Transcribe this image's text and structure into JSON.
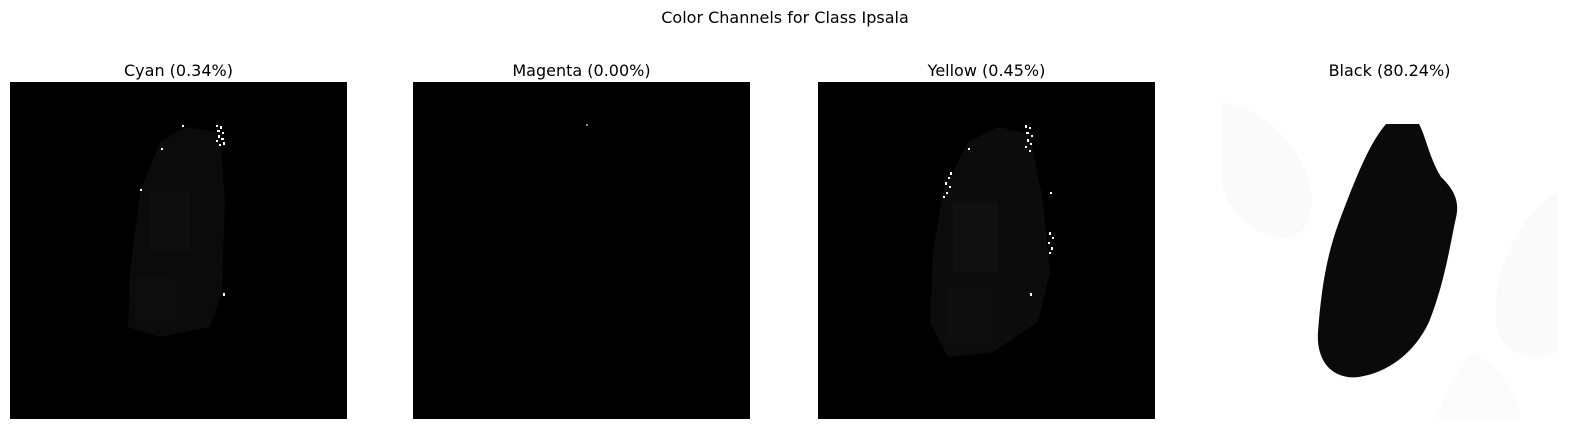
{
  "figure": {
    "title": "Color Channels for Class Ipsala"
  },
  "panels": [
    {
      "title": "Cyan (0.34%)",
      "channel": "cyan",
      "percent": 0.34,
      "background": "#000000"
    },
    {
      "title": "Magenta (0.00%)",
      "channel": "magenta",
      "percent": 0.0,
      "background": "#000000"
    },
    {
      "title": "Yellow (0.45%)",
      "channel": "yellow",
      "percent": 0.45,
      "background": "#000000"
    },
    {
      "title": "Black (80.24%)",
      "channel": "black",
      "percent": 80.24,
      "background": "#ffffff"
    }
  ]
}
